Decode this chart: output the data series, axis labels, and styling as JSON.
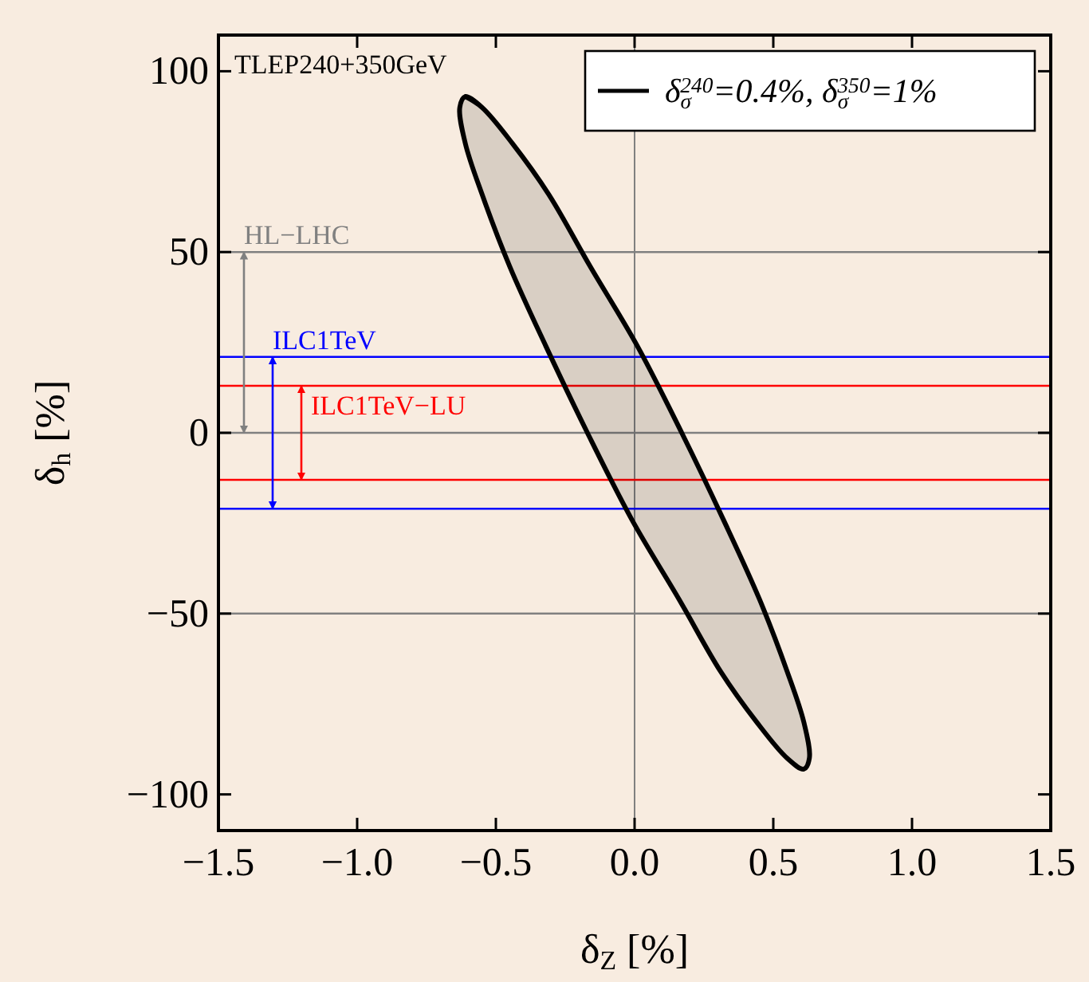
{
  "chart_data": {
    "type": "line",
    "xlabel": "δ$_{Z}$ [%]",
    "ylabel": "δ$_{h}$ [%]",
    "xlim": [
      -1.5,
      1.5
    ],
    "ylim": [
      -110,
      110
    ],
    "xticks": [
      {
        "value": -1.5,
        "label": "−1.5"
      },
      {
        "value": -1,
        "label": "−1.0"
      },
      {
        "value": -0.5,
        "label": "−0.5"
      },
      {
        "value": 0,
        "label": "0.0"
      },
      {
        "value": 0.5,
        "label": "0.5"
      },
      {
        "value": 1,
        "label": "1.0"
      },
      {
        "value": 1.5,
        "label": "1.5"
      }
    ],
    "yticks": [
      {
        "value": -100,
        "label": "−100"
      },
      {
        "value": -50,
        "label": "−50"
      },
      0,
      50,
      100
    ],
    "annotations": [
      "TLEP240+350GeV"
    ],
    "legend": "top right",
    "series": [
      {
        "name": "δ$_{σ}$$^{240}$=0.4%, δ$_{σ}$$^{350}$=1%",
        "color": "#000000",
        "x": [
          -0.61,
          -0.55,
          -0.44,
          -0.31,
          -0.16,
          0.01,
          0.17,
          0.32,
          0.45,
          0.55,
          0.61,
          0.63,
          0.61,
          0.55,
          0.44,
          0.31,
          0.16,
          -0.01,
          -0.17,
          -0.32,
          -0.45,
          -0.55,
          -0.61,
          -0.63
        ],
        "values": [
          93,
          90,
          80,
          66,
          46,
          24,
          0,
          -24,
          -46,
          -66,
          -80,
          -90,
          -93,
          -90,
          -80,
          -66,
          -46,
          -24,
          0,
          24,
          46,
          66,
          80,
          90
        ]
      }
    ],
    "ref_lines": [
      {
        "axis": "x",
        "value": 0,
        "color": "#808080"
      },
      {
        "axis": "y",
        "value": 0,
        "color": "#808080"
      },
      {
        "axis": "y",
        "value": 50,
        "label": "HL−LHC",
        "color": "#808080"
      },
      {
        "axis": "y",
        "value": -50,
        "color": "#808080"
      },
      {
        "axis": "y",
        "value": 21,
        "label": "ILC1TeV",
        "color": "#0000ff"
      },
      {
        "axis": "y",
        "value": -21,
        "color": "#0000ff"
      },
      {
        "axis": "y",
        "value": 13,
        "label": "ILC1TeV−LU",
        "color": "#ff0000"
      },
      {
        "axis": "y",
        "value": -13,
        "color": "#ff0000"
      }
    ]
  }
}
